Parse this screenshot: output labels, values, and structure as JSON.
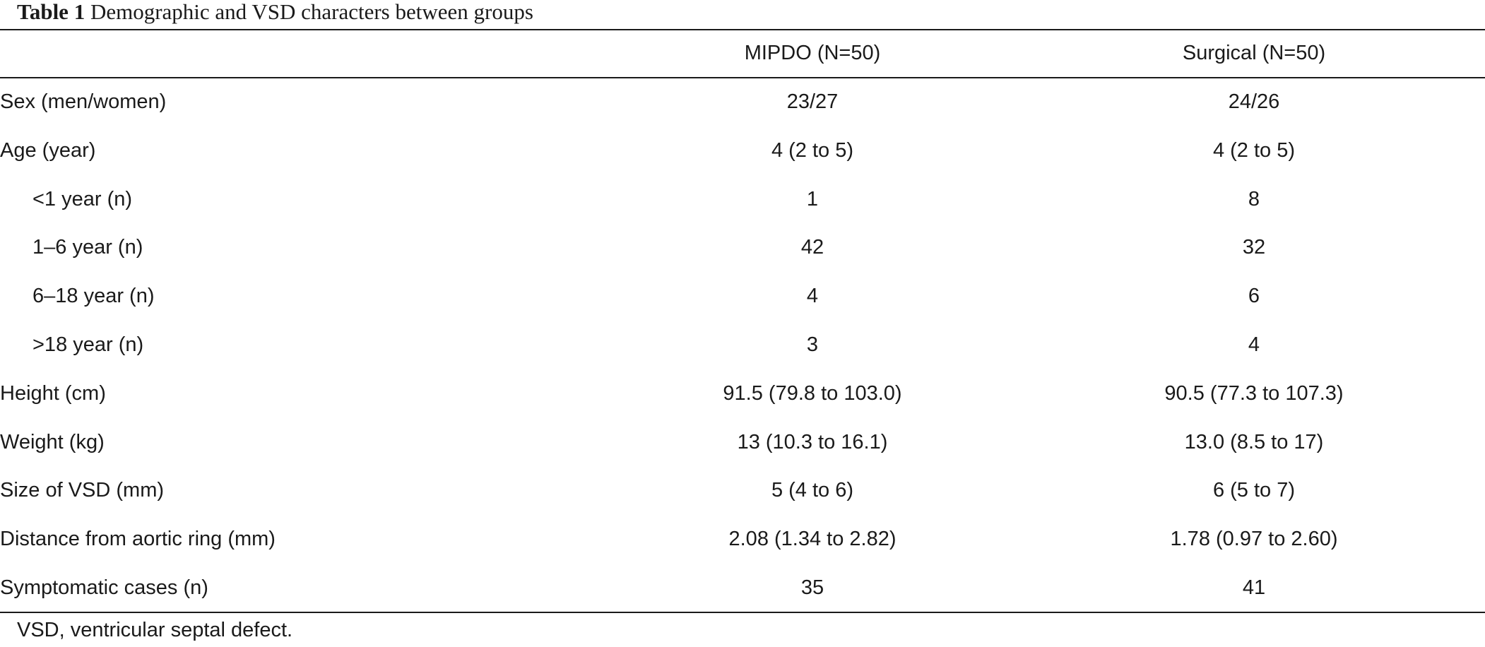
{
  "caption": {
    "label": "Table 1",
    "text": "Demographic and VSD characters between groups"
  },
  "table": {
    "headers": [
      "",
      "MIPDO (N=50)",
      "Surgical (N=50)"
    ],
    "rows": [
      {
        "label": "Sex (men/women)",
        "indent": false,
        "mipdo": "23/27",
        "surgical": "24/26"
      },
      {
        "label": "Age (year)",
        "indent": false,
        "mipdo": "4 (2 to 5)",
        "surgical": "4 (2 to 5)"
      },
      {
        "label": "<1 year (n)",
        "indent": true,
        "mipdo": "1",
        "surgical": "8"
      },
      {
        "label": "1–6 year (n)",
        "indent": true,
        "mipdo": "42",
        "surgical": "32"
      },
      {
        "label": "6–18 year (n)",
        "indent": true,
        "mipdo": "4",
        "surgical": "6"
      },
      {
        "label": ">18 year (n)",
        "indent": true,
        "mipdo": "3",
        "surgical": "4"
      },
      {
        "label": "Height (cm)",
        "indent": false,
        "mipdo": "91.5 (79.8 to 103.0)",
        "surgical": "90.5 (77.3 to 107.3)"
      },
      {
        "label": "Weight (kg)",
        "indent": false,
        "mipdo": "13 (10.3 to 16.1)",
        "surgical": "13.0 (8.5 to 17)"
      },
      {
        "label": "Size of VSD (mm)",
        "indent": false,
        "mipdo": "5 (4 to 6)",
        "surgical": "6 (5 to 7)"
      },
      {
        "label": "Distance from aortic ring (mm)",
        "indent": false,
        "mipdo": "2.08 (1.34 to 2.82)",
        "surgical": "1.78 (0.97 to 2.60)"
      },
      {
        "label": "Symptomatic cases (n)",
        "indent": false,
        "mipdo": "35",
        "surgical": "41"
      }
    ]
  },
  "footnote": "VSD, ventricular septal defect."
}
